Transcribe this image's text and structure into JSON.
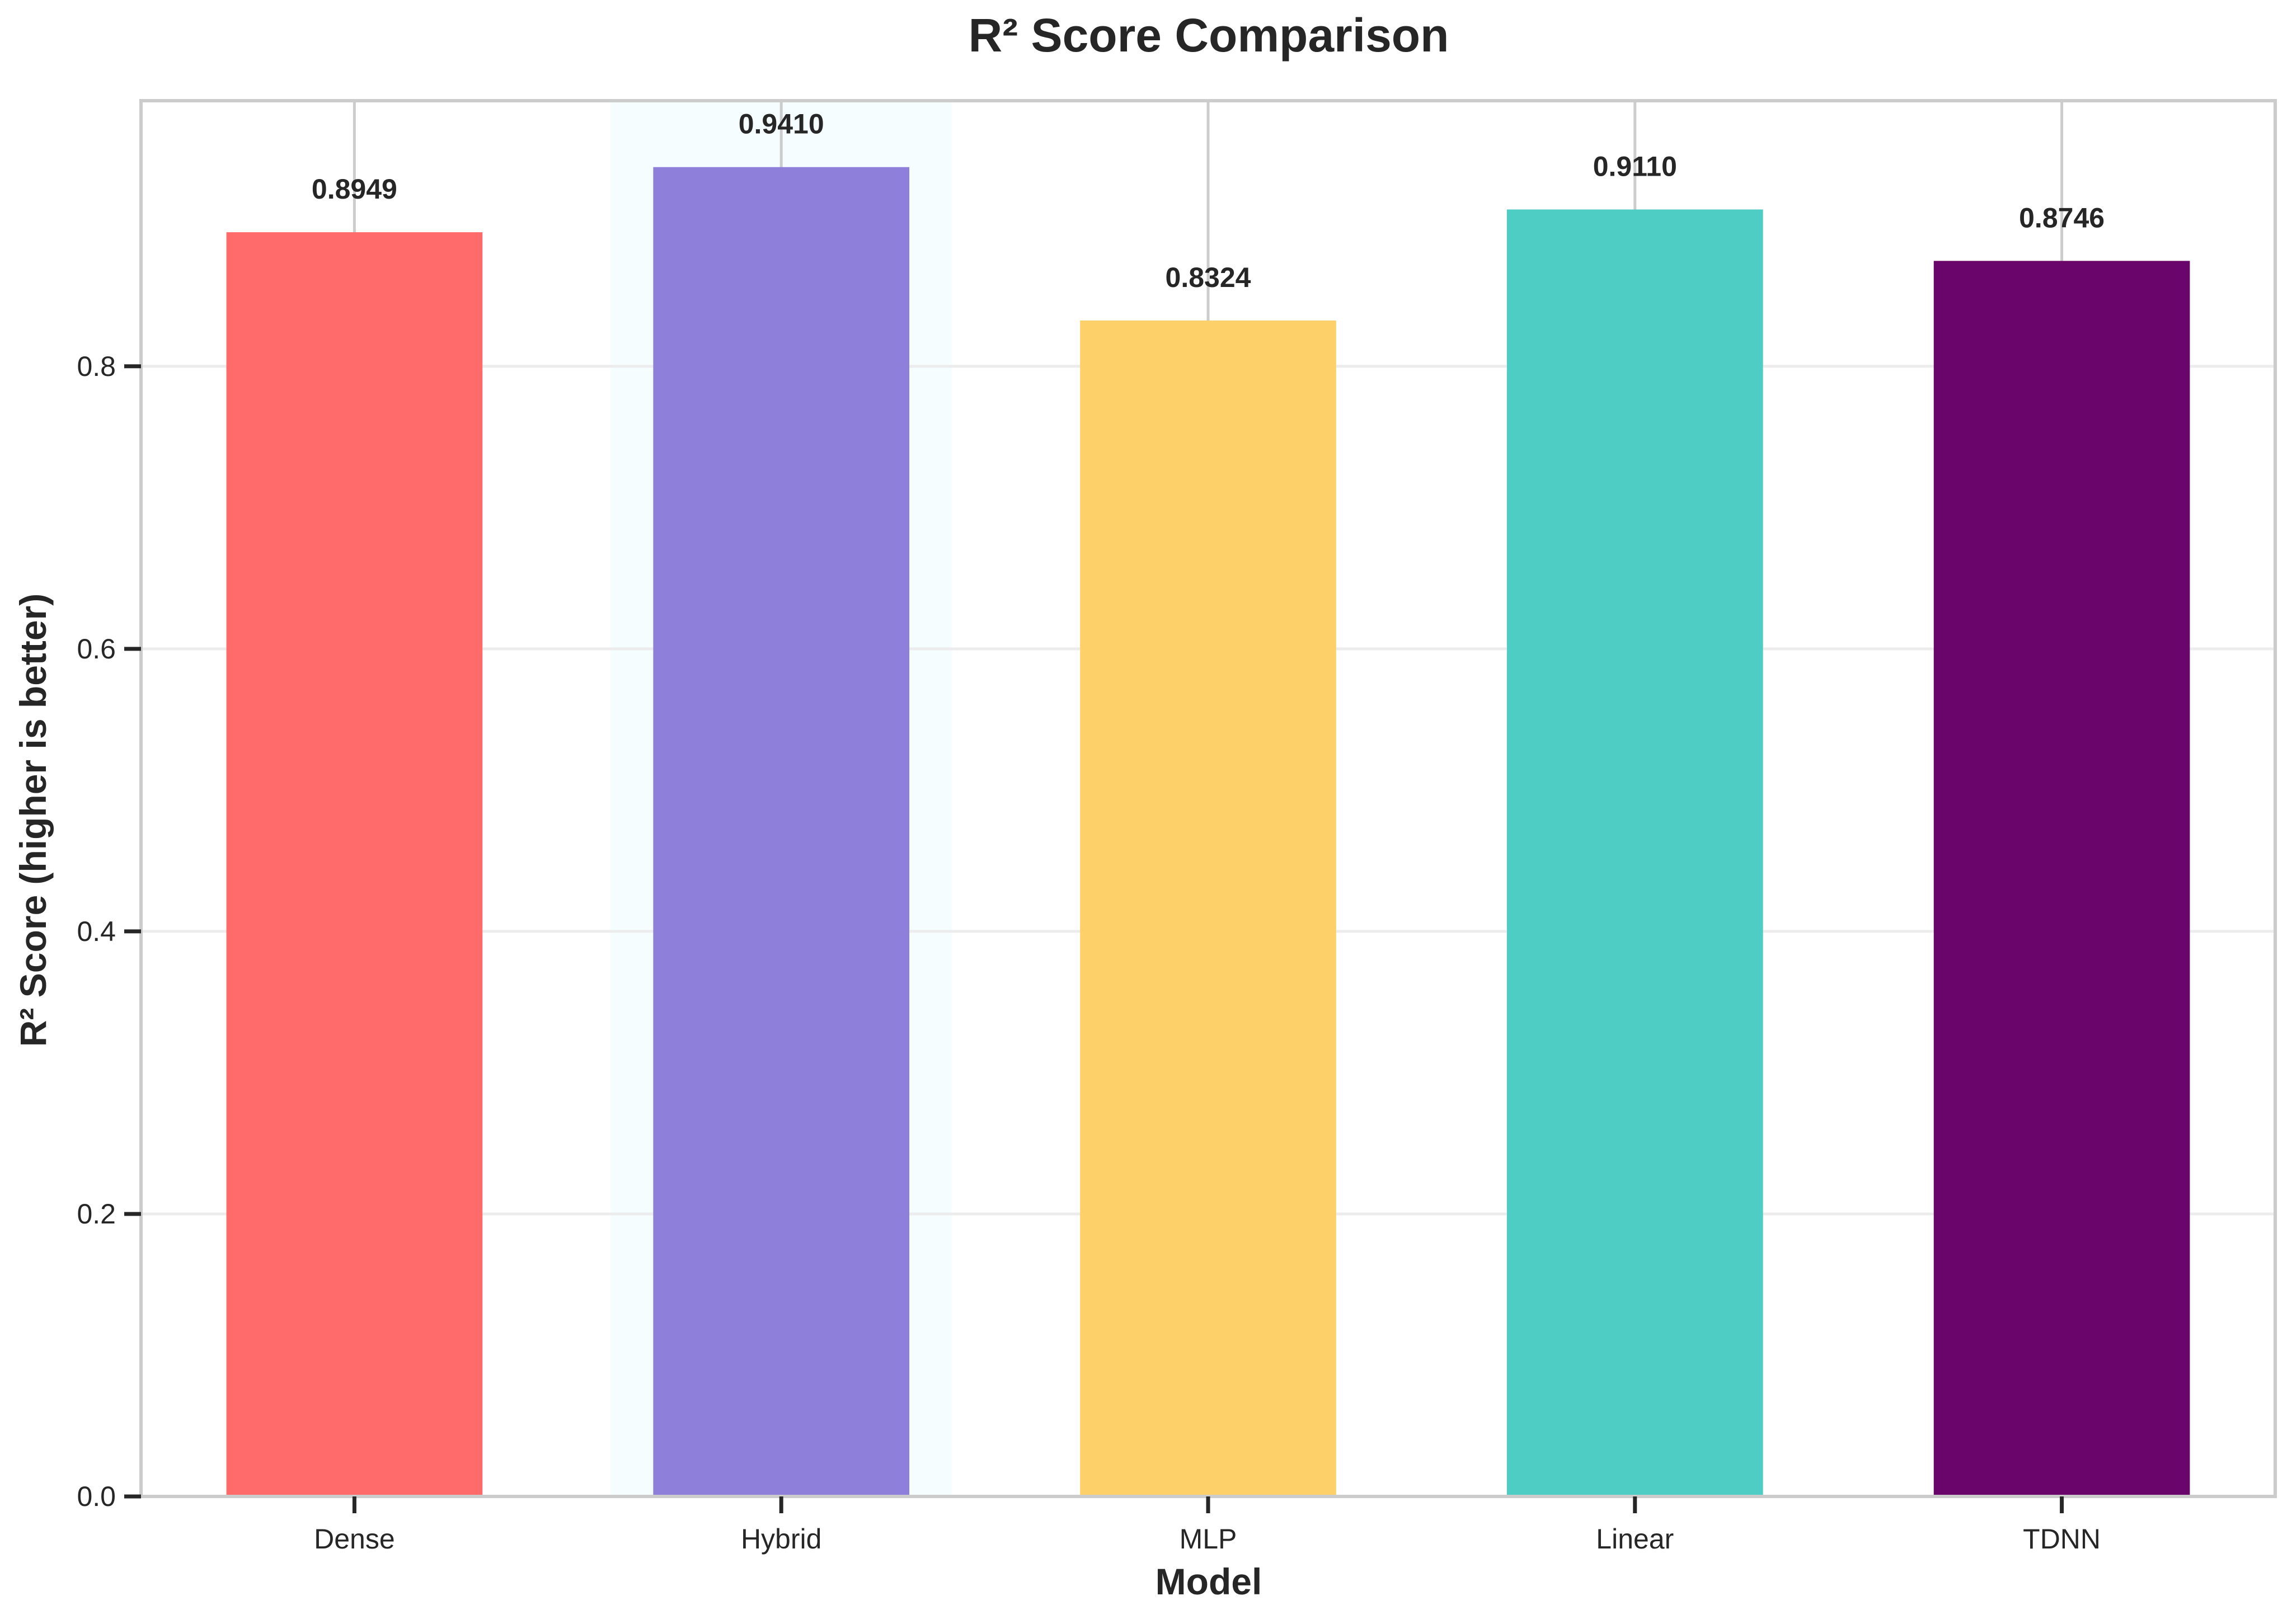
{
  "chart_data": {
    "type": "bar",
    "title": "R² Score Comparison",
    "xlabel": "Model",
    "ylabel": "R² Score (higher is better)",
    "categories": [
      "Dense",
      "Hybrid",
      "MLP",
      "Linear",
      "TDNN"
    ],
    "values": [
      0.8949,
      0.941,
      0.8324,
      0.911,
      0.8746
    ],
    "value_labels": [
      "0.8949",
      "0.9410",
      "0.8324",
      "0.9110",
      "0.8746"
    ],
    "bar_colors": [
      "#ff6b6b",
      "#8e7fdb",
      "#fed06a",
      "#4ecdc4",
      "#6a056b"
    ],
    "highlight_category": "Hybrid",
    "highlight_color": "#f5fdff",
    "yticks": [
      0.0,
      0.2,
      0.4,
      0.6,
      0.8
    ],
    "ytick_labels": [
      "0.0",
      "0.2",
      "0.4",
      "0.6",
      "0.8"
    ],
    "ylim": [
      0,
      0.988
    ],
    "grid": true,
    "legend": "none"
  }
}
